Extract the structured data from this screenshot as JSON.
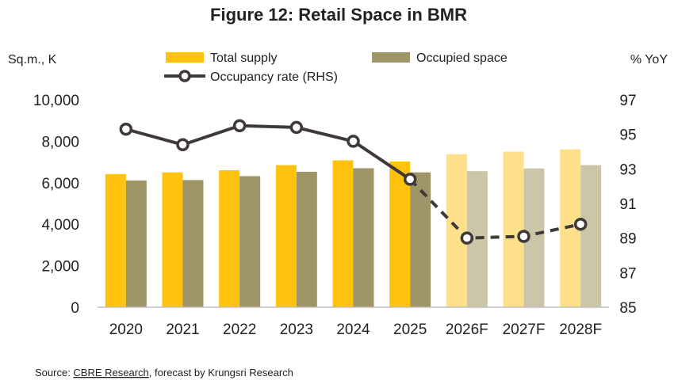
{
  "colors": {
    "total_supply": "#FFC20E",
    "occupied": "#9E9668",
    "total_supply_forecast": "#FFE08A",
    "occupied_forecast": "#CCC6A8",
    "line": "#3F3A39",
    "axis": "#BFBFBF"
  },
  "chart_data": {
    "type": "bar",
    "title": "Figure 12: Retail Space in BMR",
    "ylabel_left": "Sq.m., K",
    "ylabel_right": "% YoY",
    "categories": [
      "2020",
      "2021",
      "2022",
      "2023",
      "2024",
      "2025",
      "2026F",
      "2027F",
      "2028F"
    ],
    "forecast_categories": [
      "2026F",
      "2027F",
      "2028F"
    ],
    "ylim_left": [
      0,
      10000
    ],
    "yticks_left": [
      "0",
      "2,000",
      "4,000",
      "6,000",
      "8,000",
      "10,000"
    ],
    "ylim_right": [
      85,
      97
    ],
    "yticks_right": [
      "85",
      "87",
      "89",
      "91",
      "93",
      "95",
      "97"
    ],
    "legend_position": "top",
    "grid": false,
    "series": [
      {
        "name": "Total supply",
        "type": "bar",
        "axis": "left",
        "values": [
          6420,
          6500,
          6600,
          6850,
          7080,
          7020,
          7380,
          7500,
          7610
        ]
      },
      {
        "name": "Occupied space",
        "type": "bar",
        "axis": "left",
        "values": [
          6110,
          6130,
          6320,
          6530,
          6700,
          6500,
          6560,
          6690,
          6850
        ]
      },
      {
        "name": "Occupancy rate (RHS)",
        "type": "line",
        "axis": "right",
        "values": [
          95.3,
          94.4,
          95.5,
          95.4,
          94.6,
          92.4,
          89.0,
          89.1,
          89.8
        ],
        "forecast_from_index": 5
      }
    ]
  },
  "source": {
    "prefix": "Source: ",
    "link": "CBRE Research",
    "suffix": ", forecast by Krungsri Research"
  }
}
